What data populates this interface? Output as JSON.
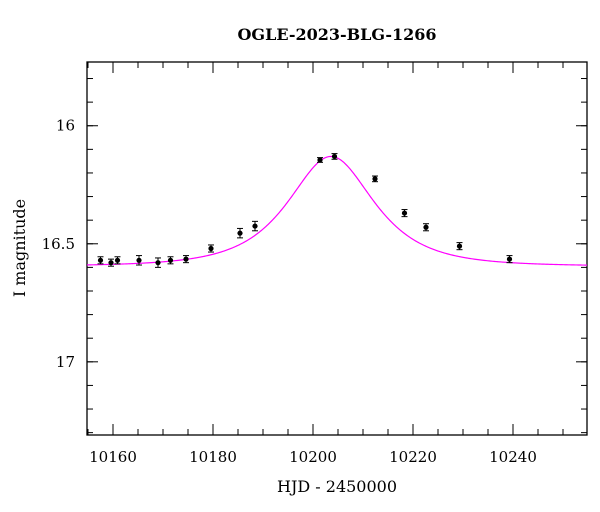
{
  "chart_data": {
    "type": "scatter",
    "title": "OGLE-2023-BLG-1266",
    "xlabel": "HJD - 2450000",
    "ylabel": "I magnitude",
    "xlim": [
      10154.8,
      10254.8
    ],
    "ylim": [
      17.31,
      15.73
    ],
    "y_inverted": true,
    "x_major_ticks": [
      10160,
      10180,
      10200,
      10220,
      10240
    ],
    "x_major_labels": [
      "10160",
      "10180",
      "10200",
      "10220",
      "10240"
    ],
    "x_minor_step": 5,
    "y_major_ticks": [
      16,
      16.5,
      17
    ],
    "y_major_labels": [
      "16",
      "16.5",
      "17"
    ],
    "y_minor_step": 0.1,
    "grid": false,
    "series": [
      {
        "kind": "points",
        "color": "#000000",
        "points": [
          {
            "x": 10157.5,
            "y": 16.57,
            "err": 0.015
          },
          {
            "x": 10159.6,
            "y": 16.58,
            "err": 0.015
          },
          {
            "x": 10160.9,
            "y": 16.57,
            "err": 0.015
          },
          {
            "x": 10165.2,
            "y": 16.57,
            "err": 0.02
          },
          {
            "x": 10169.0,
            "y": 16.58,
            "err": 0.02
          },
          {
            "x": 10171.5,
            "y": 16.57,
            "err": 0.015
          },
          {
            "x": 10174.6,
            "y": 16.565,
            "err": 0.015
          },
          {
            "x": 10179.6,
            "y": 16.52,
            "err": 0.015
          },
          {
            "x": 10185.4,
            "y": 16.455,
            "err": 0.02
          },
          {
            "x": 10188.4,
            "y": 16.425,
            "err": 0.02
          },
          {
            "x": 10201.4,
            "y": 16.145,
            "err": 0.01
          },
          {
            "x": 10204.3,
            "y": 16.13,
            "err": 0.012
          },
          {
            "x": 10212.4,
            "y": 16.225,
            "err": 0.012
          },
          {
            "x": 10218.3,
            "y": 16.37,
            "err": 0.015
          },
          {
            "x": 10222.6,
            "y": 16.43,
            "err": 0.015
          },
          {
            "x": 10229.3,
            "y": 16.51,
            "err": 0.015
          },
          {
            "x": 10239.3,
            "y": 16.565,
            "err": 0.015
          }
        ]
      },
      {
        "kind": "model",
        "color": "#ff00ff",
        "baseline": 16.595,
        "peak_x": 10203.6,
        "peak_mag": 16.13,
        "width": 11.7
      }
    ]
  }
}
